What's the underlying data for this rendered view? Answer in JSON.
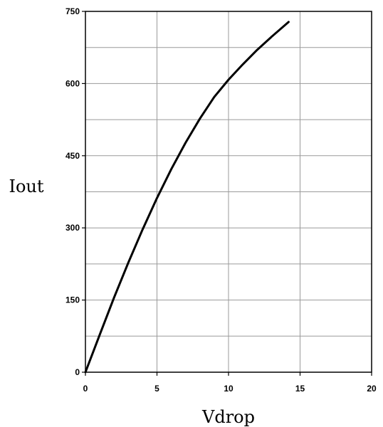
{
  "chart_data": {
    "type": "line",
    "title": "",
    "xlabel": "Vdrop",
    "ylabel": "Iout",
    "xlim": [
      0,
      20
    ],
    "ylim": [
      0,
      750
    ],
    "x_ticks": [
      "0",
      "5",
      "10",
      "15",
      "20"
    ],
    "y_ticks": [
      "0",
      "150",
      "300",
      "450",
      "600",
      "750"
    ],
    "grid": true,
    "legend": "none",
    "series": [
      {
        "color": "#000000",
        "x": [
          0,
          1,
          2,
          3,
          4,
          5,
          6,
          7,
          8,
          9,
          10,
          11,
          12,
          13,
          14.2
        ],
        "y": [
          0,
          78,
          155,
          228,
          297,
          362,
          422,
          477,
          527,
          572,
          608,
          640,
          670,
          697,
          728
        ]
      }
    ]
  }
}
